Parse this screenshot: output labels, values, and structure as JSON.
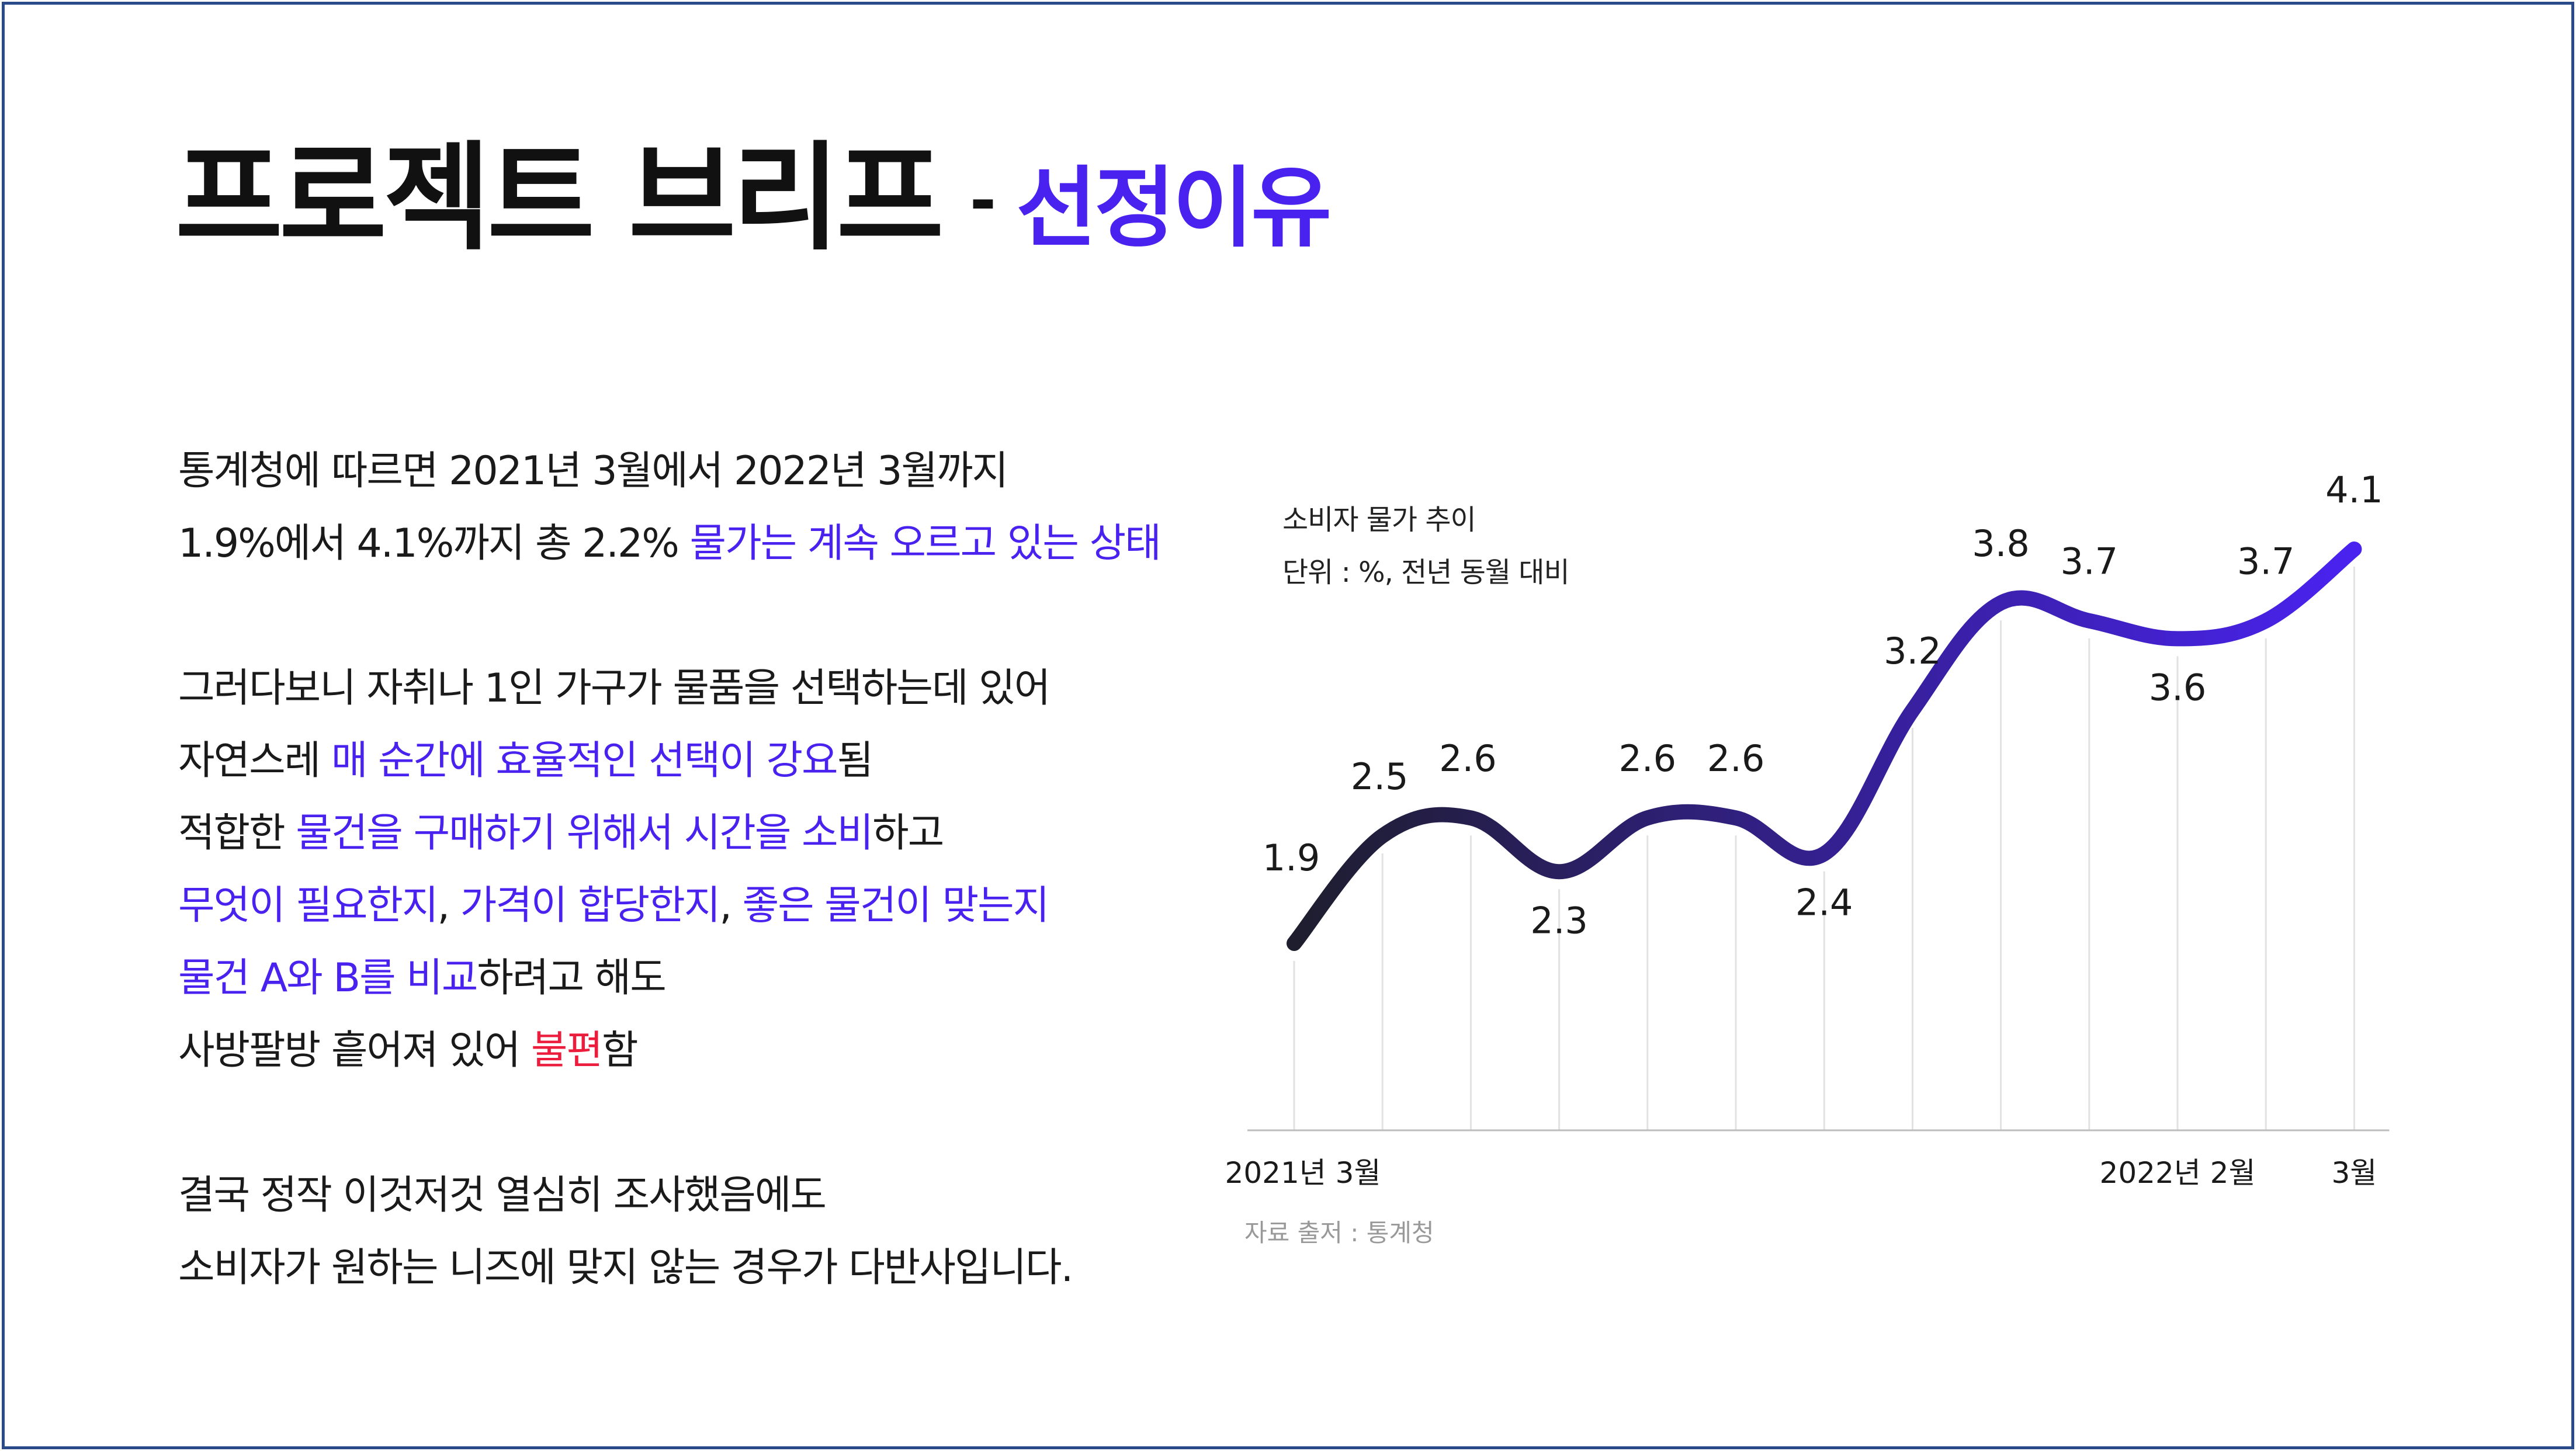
{
  "header": {
    "title_main": "프로젝트 브리프",
    "title_dash": "-",
    "title_sub": "선정이유"
  },
  "body": {
    "p1": [
      [
        {
          "t": "통계청에 따르면 2021년 3월에서 2022년 3월까지",
          "c": "normal"
        }
      ],
      [
        {
          "t": "1.9%에서 4.1%까지 총 2.2% ",
          "c": "normal"
        },
        {
          "t": "물가는 계속 오르고 있는 상태",
          "c": "hl"
        }
      ]
    ],
    "p2": [
      [
        {
          "t": "그러다보니 자취나 1인 가구가 물품을 선택하는데 있어",
          "c": "normal"
        }
      ],
      [
        {
          "t": "자연스레 ",
          "c": "normal"
        },
        {
          "t": "매 순간에 효율적인 선택이 강요",
          "c": "hl"
        },
        {
          "t": "됨",
          "c": "normal"
        }
      ],
      [
        {
          "t": "적합한 ",
          "c": "normal"
        },
        {
          "t": "물건을 구매하기 위해서 시간을 소비",
          "c": "hl"
        },
        {
          "t": "하고",
          "c": "normal"
        }
      ],
      [
        {
          "t": "무엇이 필요한지",
          "c": "hl"
        },
        {
          "t": ", ",
          "c": "normal"
        },
        {
          "t": "가격이 합당한지",
          "c": "hl"
        },
        {
          "t": ", ",
          "c": "normal"
        },
        {
          "t": "좋은 물건이 맞는지",
          "c": "hl"
        }
      ],
      [
        {
          "t": "물건 A와 B를 비교",
          "c": "hl"
        },
        {
          "t": "하려고 해도",
          "c": "normal"
        }
      ],
      [
        {
          "t": "사방팔방 흩어져 있어 ",
          "c": "normal"
        },
        {
          "t": "불편",
          "c": "red"
        },
        {
          "t": "함",
          "c": "normal"
        }
      ]
    ],
    "p3": [
      [
        {
          "t": "결국 정작 이것저것 열심히 조사했음에도",
          "c": "normal"
        }
      ],
      [
        {
          "t": "소비자가 원하는 니즈에 맞지 않는 경우가 다반사입니다.",
          "c": "normal"
        }
      ]
    ]
  },
  "chart_note": {
    "line1": "소비자 물가 추이",
    "line2": "단위 : %, 전년 동월 대비",
    "source": "자료 출저 : 통계청"
  },
  "colors": {
    "accent": "#4a22f0",
    "warn": "#ec1c3c",
    "line_start": "#1e1e2e",
    "line_end": "#4a22f0",
    "border": "#2b4a8a"
  },
  "chart_data": {
    "type": "line",
    "title": "소비자 물가 추이",
    "ylabel": "",
    "xlabel": "",
    "ylim": [
      1.9,
      4.1
    ],
    "x_tick_labels": [
      "2021년 3월",
      "",
      "",
      "",
      "",
      "",
      "",
      "",
      "",
      "",
      "2022년 2월",
      "",
      "3월"
    ],
    "series": [
      {
        "values": [
          1.9,
          2.5,
          2.6,
          2.3,
          2.6,
          2.6,
          2.4,
          3.2,
          3.8,
          3.7,
          3.6,
          3.7,
          4.1
        ]
      }
    ],
    "grid": "vertical",
    "smooth": true
  }
}
